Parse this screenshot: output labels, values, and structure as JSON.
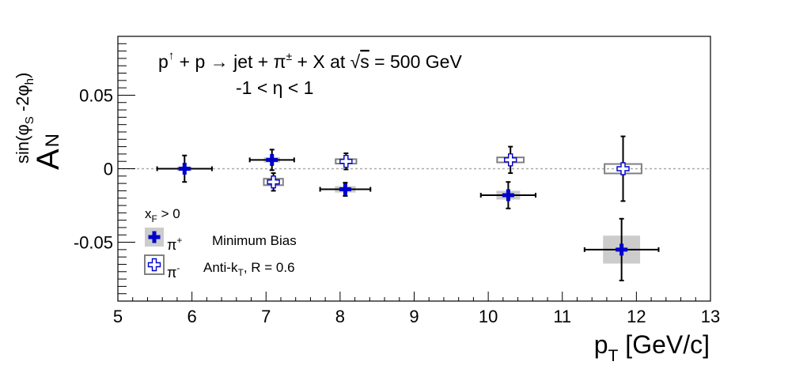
{
  "chart_data": {
    "type": "scatter",
    "title_line1": {
      "lhs_p": "p",
      "arrow": "↑",
      "plus_p": " + p ",
      "to": "→",
      "jet": " jet + π",
      "pm": "±",
      "x_at": " + X at ",
      "sqrt": "√",
      "s": "s",
      "energy": " = 500 GeV"
    },
    "title_line2": "-1 < η < 1",
    "xlabel": {
      "main": "p",
      "sub": "T",
      "unit": " [GeV/c]"
    },
    "ylabel": {
      "main": "A",
      "sub": "N",
      "sup_pre": "sin(φ",
      "sup_sub1": "S",
      "sup_mid": " -2φ",
      "sup_sub2": "h",
      "sup_post": ")"
    },
    "xlim": [
      5,
      13
    ],
    "ylim": [
      -0.09,
      0.09
    ],
    "x_major_ticks": [
      5,
      6,
      7,
      8,
      9,
      10,
      11,
      12,
      13
    ],
    "x_tick_labels": [
      "5",
      "6",
      "7",
      "8",
      "9",
      "10",
      "11",
      "12",
      "13"
    ],
    "y_major_ticks": [
      -0.05,
      0,
      0.05
    ],
    "y_tick_labels": [
      "-0.05",
      "0",
      "0.05"
    ],
    "zero_line": true,
    "grid": false,
    "series": [
      {
        "name": "π+",
        "marker": "filled-cross",
        "color": "#0000cc",
        "points": [
          {
            "x": 5.9,
            "y": 0.0,
            "xerr": 0.37,
            "yerr": 0.009,
            "sys_dx": 0.1,
            "sys_dy": 0.0015
          },
          {
            "x": 7.08,
            "y": 0.006,
            "xerr": 0.3,
            "yerr": 0.007,
            "sys_dx": 0.11,
            "sys_dy": 0.0018
          },
          {
            "x": 8.07,
            "y": -0.014,
            "xerr": 0.34,
            "yerr": 0.0045,
            "sys_dx": 0.14,
            "sys_dy": 0.0022
          },
          {
            "x": 10.27,
            "y": -0.018,
            "xerr": 0.37,
            "yerr": 0.009,
            "sys_dx": 0.16,
            "sys_dy": 0.003
          },
          {
            "x": 11.8,
            "y": -0.055,
            "xerr": 0.5,
            "yerr": 0.021,
            "sys_dx": 0.25,
            "sys_dy": 0.0095
          }
        ]
      },
      {
        "name": "π-",
        "marker": "open-cross",
        "color": "#808080",
        "points": [
          {
            "x": 7.1,
            "y": -0.009,
            "xerr": 0.0,
            "yerr": 0.006,
            "sys_dx": 0.13,
            "sys_dy": 0.0022
          },
          {
            "x": 8.08,
            "y": 0.005,
            "xerr": 0.0,
            "yerr": 0.0055,
            "sys_dx": 0.14,
            "sys_dy": 0.0015
          },
          {
            "x": 10.3,
            "y": 0.006,
            "xerr": 0.0,
            "yerr": 0.009,
            "sys_dx": 0.18,
            "sys_dy": 0.0017
          },
          {
            "x": 11.82,
            "y": 0.0,
            "xerr": 0.0,
            "yerr": 0.022,
            "sys_dx": 0.25,
            "sys_dy": 0.0032
          }
        ]
      }
    ],
    "legend": {
      "placement": "bottom-left",
      "header": {
        "main": "x",
        "sub": "F",
        "rest": " > 0"
      },
      "entries": [
        {
          "main": "π",
          "sup": "+"
        },
        {
          "main": "π",
          "sup": "-"
        }
      ],
      "notes": [
        {
          "text": "Minimum Bias"
        },
        {
          "pre": "Anti-k",
          "sub": "T",
          "post": ", R = 0.6"
        }
      ]
    }
  }
}
